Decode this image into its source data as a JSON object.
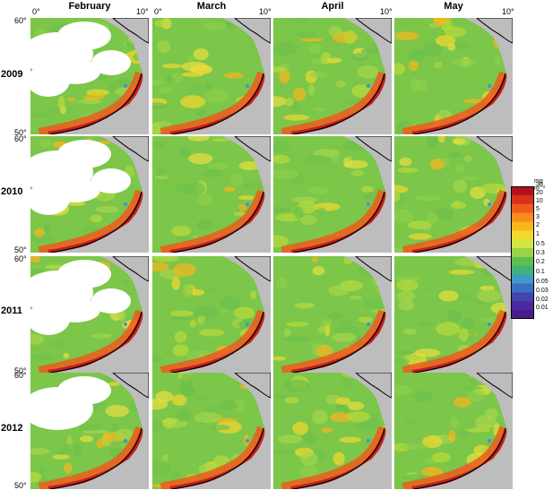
{
  "months": [
    "February",
    "March",
    "April",
    "May"
  ],
  "years": [
    "2009",
    "2010",
    "2011",
    "2012"
  ],
  "lon_labels": [
    "0°",
    "10°"
  ],
  "lat_labels": [
    "60°",
    "50°"
  ],
  "colorbar": {
    "unit": "mg m⁻³",
    "ticks": [
      "30",
      "20",
      "10",
      "5",
      "3",
      "2",
      "1",
      "0.5",
      "0.3",
      "0.2",
      "0.1",
      "0.05",
      "0.03",
      "0.02",
      "0.01"
    ],
    "colors": [
      "#b2121a",
      "#d8301e",
      "#f05a1c",
      "#f88c1c",
      "#f8b51e",
      "#f2d92c",
      "#d4e442",
      "#9ad24a",
      "#5cbf50",
      "#43b27a",
      "#3d9bc6",
      "#3a6fc4",
      "#4145ad",
      "#4a2aa0",
      "#4b1b8c"
    ]
  }
}
